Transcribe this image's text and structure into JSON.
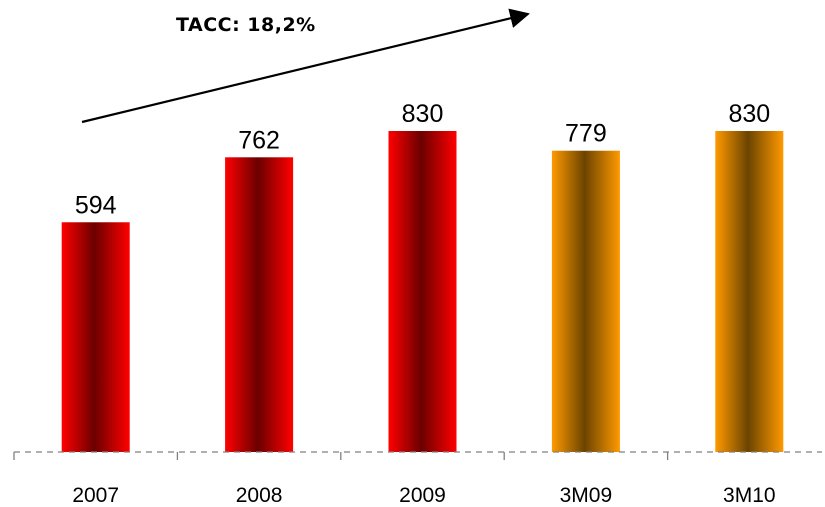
{
  "chart_data": {
    "type": "bar",
    "categories": [
      "2007",
      "2008",
      "2009",
      "3M09",
      "3M10"
    ],
    "values": [
      594,
      762,
      830,
      779,
      830
    ],
    "data_labels": [
      "594",
      "762",
      "830",
      "779",
      "830"
    ],
    "annotation": "TACC: 18,2%",
    "title": "",
    "xlabel": "",
    "ylabel": "",
    "ylim": [
      0,
      830
    ],
    "grid": false,
    "legend": "none"
  },
  "colors": {
    "annual_bar_edge": "#ff0000",
    "annual_bar_core": "#6b0000",
    "quarter_bar_edge": "#ff9900",
    "quarter_bar_core": "#6b4400",
    "axis_line": "#808080",
    "arrow": "#000000"
  }
}
